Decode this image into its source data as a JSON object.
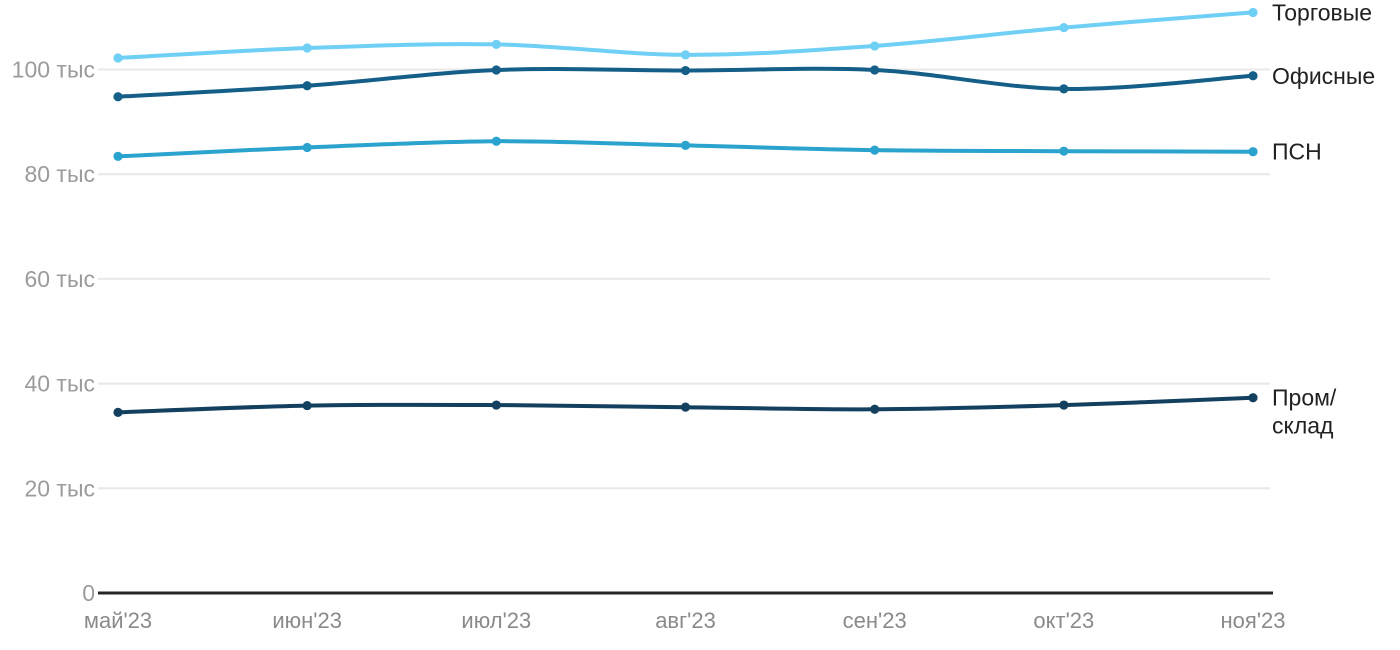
{
  "chart_data": {
    "type": "line",
    "title": "",
    "xlabel": "",
    "ylabel": "",
    "unit": "тыс",
    "grid": "horizontal",
    "legend_position": "right-inline",
    "ylim": [
      0,
      113
    ],
    "categories": [
      "май'23",
      "июн'23",
      "июл'23",
      "авг'23",
      "сен'23",
      "окт'23",
      "ноя'23"
    ],
    "y_ticks": [
      {
        "value": 0,
        "label": "0"
      },
      {
        "value": 20,
        "label": "20 тыс"
      },
      {
        "value": 40,
        "label": "40 тыс"
      },
      {
        "value": 60,
        "label": "60 тыс"
      },
      {
        "value": 80,
        "label": "80 тыс"
      },
      {
        "value": 100,
        "label": "100 тыс"
      }
    ],
    "series": [
      {
        "name": "Торговые",
        "label_lines": [
          "Торговые"
        ],
        "color": "#6fcff4",
        "values": [
          102.2,
          104.1,
          104.8,
          102.8,
          104.5,
          108.0,
          110.9
        ]
      },
      {
        "name": "Офисные",
        "label_lines": [
          "Офисные"
        ],
        "color": "#155e87",
        "values": [
          94.8,
          96.9,
          99.9,
          99.8,
          99.9,
          96.3,
          98.8
        ]
      },
      {
        "name": "ПСН",
        "label_lines": [
          "ПСН"
        ],
        "color": "#2aa3ce",
        "values": [
          83.4,
          85.1,
          86.3,
          85.5,
          84.6,
          84.4,
          84.3
        ]
      },
      {
        "name": "Пром/склад",
        "label_lines": [
          "Пром/",
          "склад"
        ],
        "color": "#14405f",
        "values": [
          34.5,
          35.8,
          35.9,
          35.5,
          35.1,
          35.9,
          37.3
        ]
      }
    ],
    "colors": {
      "gridline": "#e8e8e8",
      "axis_line": "#262626",
      "y_tick_text": "#9b9b9b",
      "x_tick_text": "#8a8a8a",
      "series_label_text": "#212121",
      "background": "#ffffff"
    }
  }
}
